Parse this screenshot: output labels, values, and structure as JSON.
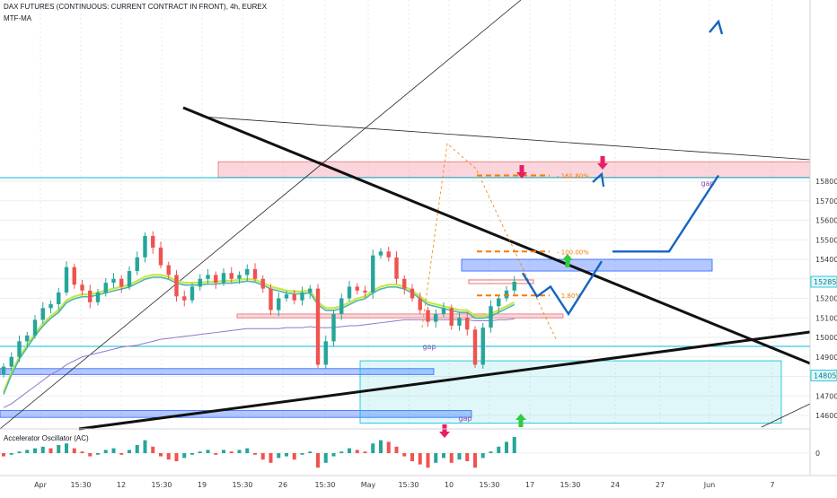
{
  "header": {
    "title": "DAX FUTURES (CONTINUOUS: CURRENT CONTRACT IN FRONT), 4h, EUREX",
    "indicator": "MTF-MA"
  },
  "oscillator": {
    "title": "Accelerator Oscillator (AC)",
    "zero_label": "0"
  },
  "colors": {
    "up": "#26a69a",
    "down": "#ef5350",
    "trend": "#131722",
    "blue_zone": "#2962ff",
    "pink_zone": "#f7a1b2",
    "cyan": "#00bcd4",
    "fib": "#f57c00",
    "projection": "#1565c0"
  },
  "chart_data": {
    "type": "candlestick",
    "x_ticks": [
      "Apr",
      "15:30",
      "12",
      "15:30",
      "19",
      "15:30",
      "26",
      "15:30",
      "May",
      "15:30",
      "10",
      "15:30",
      "17",
      "15:30",
      "24",
      "27",
      "Jun",
      "7"
    ],
    "y_ticks": [
      14600,
      14700,
      14800,
      14900,
      15000,
      15100,
      15200,
      15300,
      15400,
      15500,
      15600,
      15700,
      15800
    ],
    "ylim": [
      14560,
      15900
    ],
    "last_price_tags": [
      15285,
      14805
    ],
    "candles_close": [
      14850,
      14900,
      14980,
      15010,
      15090,
      15150,
      15170,
      15230,
      15360,
      15270,
      15240,
      15180,
      15230,
      15280,
      15300,
      15260,
      15340,
      15410,
      15520,
      15460,
      15370,
      15320,
      15210,
      15190,
      15260,
      15300,
      15320,
      15280,
      15330,
      15300,
      15320,
      15350,
      15300,
      15250,
      15140,
      15200,
      15220,
      15190,
      15230,
      15250,
      14860,
      14980,
      15120,
      15200,
      15260,
      15240,
      15230,
      15420,
      15440,
      15410,
      15300,
      15250,
      15200,
      15140,
      15080,
      15120,
      15150,
      15060,
      15100,
      15040,
      14860,
      15050,
      15160,
      15200,
      15240,
      15285
    ],
    "ma_fast": [
      14720,
      14820,
      14900,
      14960,
      15020,
      15070,
      15110,
      15140,
      15190,
      15210,
      15220,
      15220,
      15230,
      15240,
      15250,
      15260,
      15270,
      15290,
      15310,
      15320,
      15320,
      15310,
      15290,
      15280,
      15280,
      15280,
      15285,
      15285,
      15290,
      15290,
      15295,
      15300,
      15295,
      15280,
      15260,
      15250,
      15240,
      15235,
      15235,
      15240,
      15180,
      15150,
      15150,
      15160,
      15180,
      15200,
      15210,
      15240,
      15260,
      15270,
      15270,
      15260,
      15240,
      15210,
      15180,
      15170,
      15160,
      15150,
      15140,
      15140,
      15110,
      15110,
      15120,
      15140,
      15160,
      15180
    ],
    "ma_slow": [
      14640,
      14660,
      14690,
      14720,
      14750,
      14780,
      14810,
      14830,
      14860,
      14880,
      14900,
      14910,
      14920,
      14930,
      14940,
      14950,
      14955,
      14960,
      14970,
      14980,
      14990,
      14995,
      15000,
      15005,
      15010,
      15015,
      15020,
      15025,
      15030,
      15035,
      15040,
      15045,
      15045,
      15045,
      15045,
      15045,
      15050,
      15050,
      15050,
      15055,
      15050,
      15050,
      15050,
      15055,
      15060,
      15060,
      15065,
      15070,
      15075,
      15080,
      15085,
      15090,
      15090,
      15090,
      15090,
      15090,
      15090,
      15090,
      15090,
      15090,
      15085,
      15085,
      15085,
      15090,
      15090,
      15095
    ],
    "oscillator_values": [
      -0.2,
      -0.1,
      0.1,
      0.2,
      0.3,
      0.4,
      0.3,
      0.5,
      0.6,
      0.3,
      0.1,
      -0.2,
      -0.1,
      0.2,
      0.3,
      -0.1,
      0.2,
      0.5,
      0.8,
      0.4,
      -0.2,
      -0.4,
      -0.5,
      -0.3,
      -0.1,
      0.1,
      0.2,
      -0.1,
      0.2,
      0.1,
      0.2,
      0.3,
      -0.1,
      -0.4,
      -0.6,
      -0.3,
      -0.2,
      -0.4,
      -0.1,
      0.1,
      -0.9,
      -0.6,
      -0.2,
      0.1,
      0.3,
      0.2,
      0.1,
      0.6,
      0.8,
      0.7,
      0.4,
      -0.2,
      -0.5,
      -0.7,
      -0.9,
      -0.6,
      -0.3,
      -0.6,
      -0.4,
      -0.5,
      -0.9,
      -0.3,
      0.1,
      0.4,
      0.7,
      1.0
    ],
    "fib_levels": [
      {
        "label": "161.80%",
        "price": 15830
      },
      {
        "label": "100.00%",
        "price": 15440
      },
      {
        "label": "1.80%",
        "price": 15215
      }
    ],
    "zones": [
      {
        "kind": "blue",
        "from": 15340,
        "to": 15400,
        "label": "gap"
      },
      {
        "kind": "blue",
        "from": 14810,
        "to": 14840,
        "label": "gap"
      },
      {
        "kind": "blue",
        "from": 14590,
        "to": 14625,
        "label": "gap"
      },
      {
        "kind": "pink",
        "from": 15100,
        "to": 15120,
        "label": ""
      },
      {
        "kind": "pink",
        "from": 15820,
        "to": 15900,
        "label": ""
      },
      {
        "kind": "cyan",
        "from": 14560,
        "to": 14880,
        "label": ""
      }
    ],
    "projection_path_prices": [
      15330,
      15210,
      15260,
      15120,
      15390
    ],
    "projection_breakout_prices": [
      15440,
      15440,
      15830
    ]
  }
}
